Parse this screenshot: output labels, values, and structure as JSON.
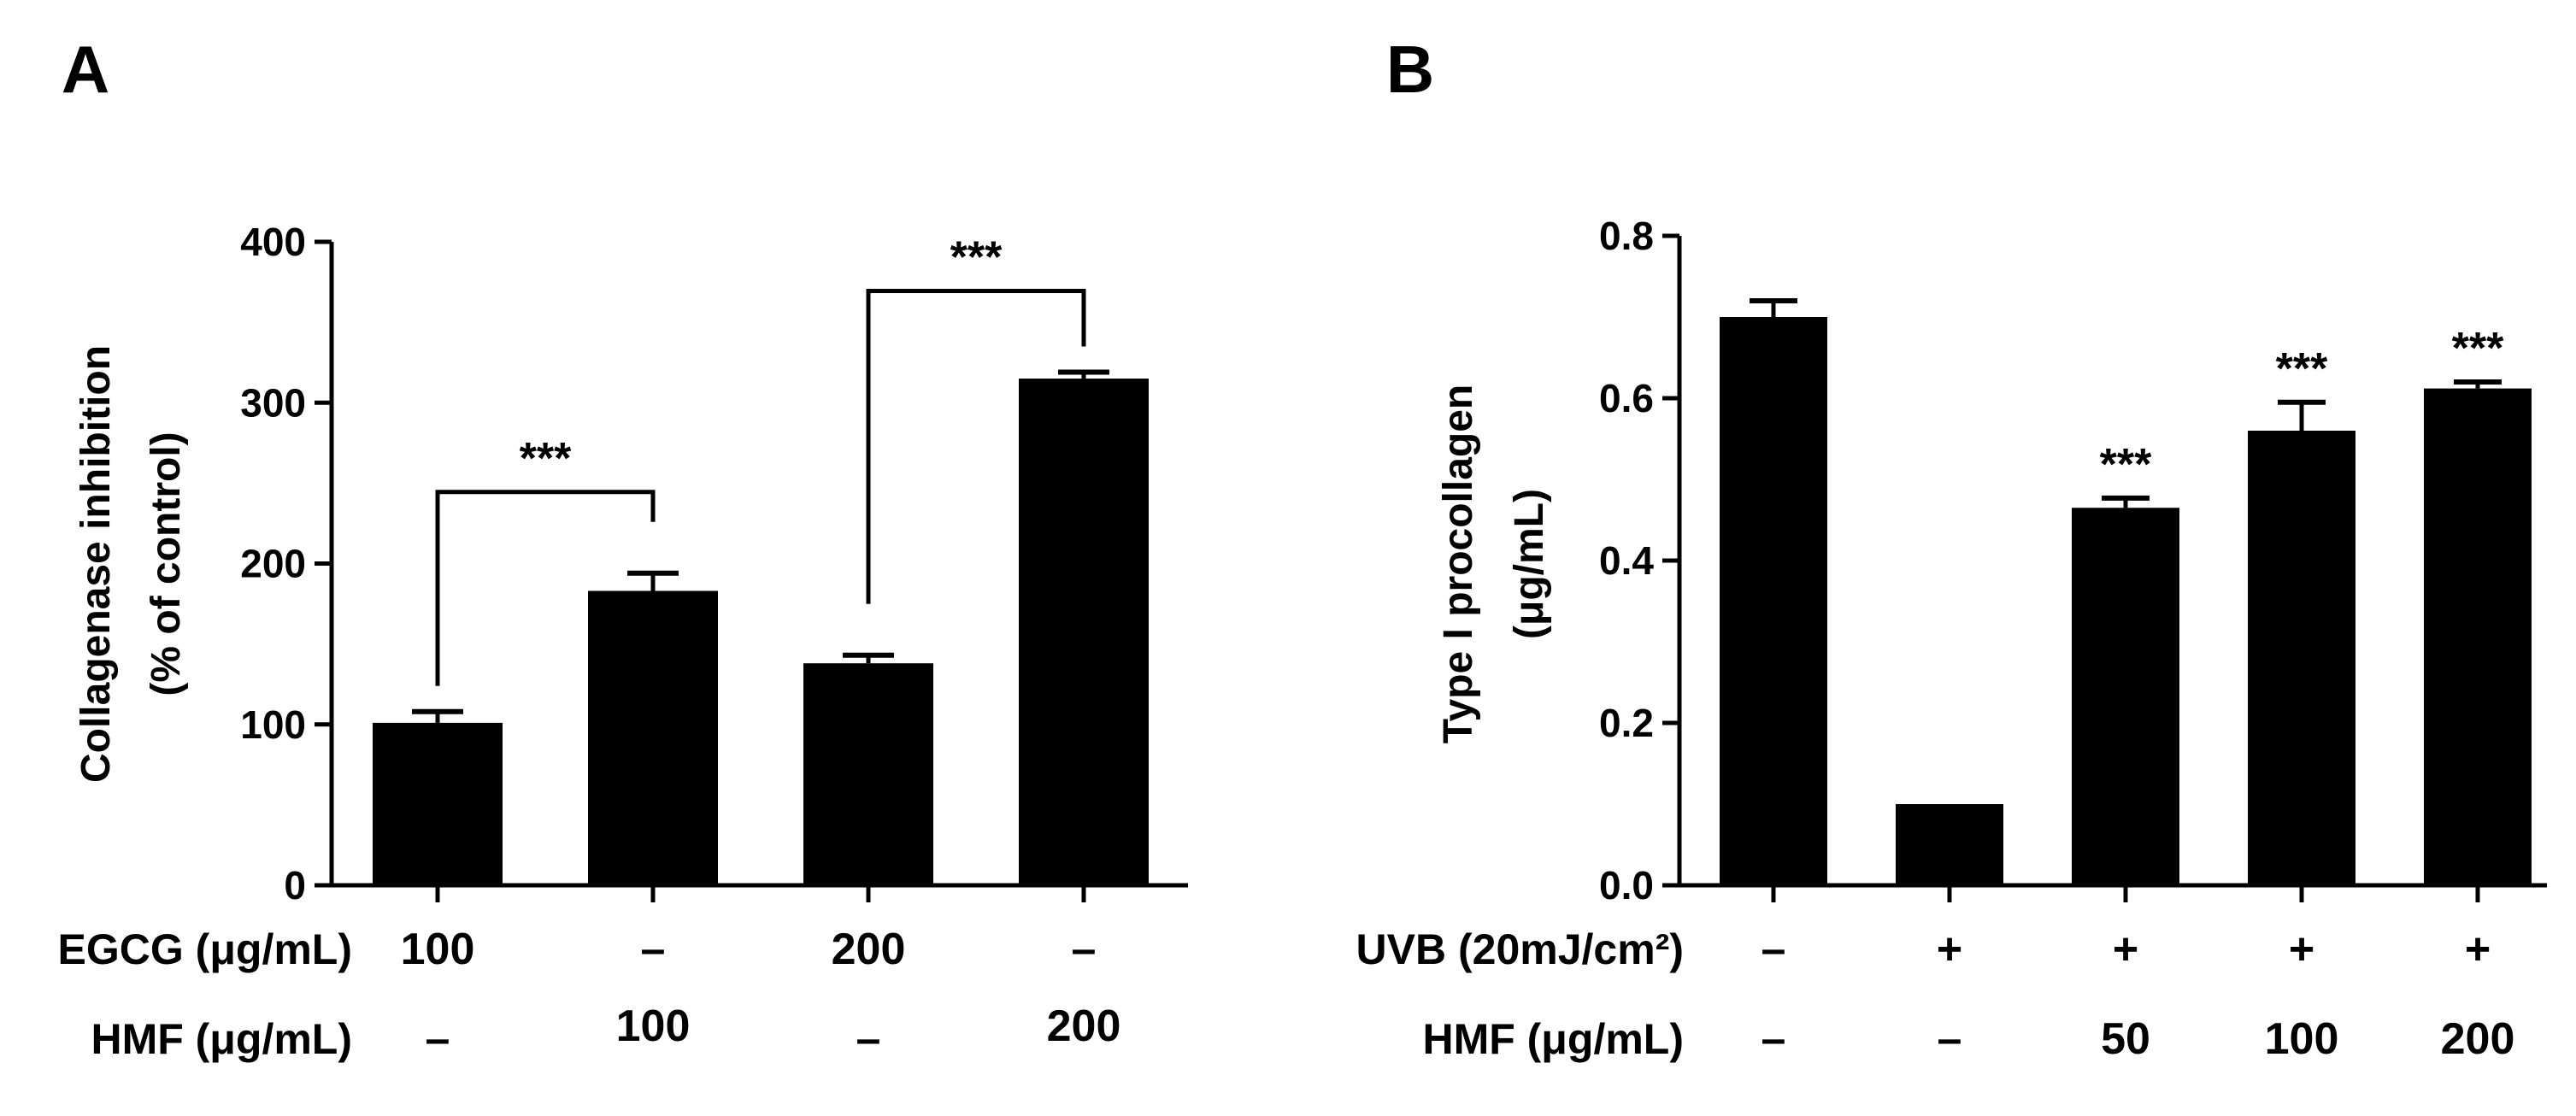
{
  "chart_data": [
    {
      "panel": "A",
      "type": "bar",
      "ylabel": [
        "Collagenase inhibition",
        "(% of control)"
      ],
      "ylim": [
        0,
        400
      ],
      "yticks": [
        0,
        100,
        200,
        300,
        400
      ],
      "ytick_labels": [
        "0",
        "100",
        "200",
        "300",
        "400"
      ],
      "values": [
        101,
        183,
        138,
        315
      ],
      "errors": [
        7,
        11,
        5,
        4
      ],
      "rows": [
        {
          "label": "EGCG (μg/mL)",
          "cells": [
            "100",
            "–",
            "200",
            "–"
          ]
        },
        {
          "label": "HMF (μg/mL)",
          "cells": [
            "–",
            "100",
            "–",
            "200"
          ]
        }
      ],
      "brackets": [
        {
          "from": 0,
          "to": 1,
          "label": "***"
        },
        {
          "from": 2,
          "to": 3,
          "label": "***"
        }
      ]
    },
    {
      "panel": "B",
      "type": "bar",
      "ylabel": [
        "Type I procollagen",
        "(μg/mL)"
      ],
      "ylim": [
        0,
        0.8
      ],
      "yticks": [
        0,
        0.2,
        0.4,
        0.6,
        0.8
      ],
      "ytick_labels": [
        "0.0",
        "0.2",
        "0.4",
        "0.6",
        "0.8"
      ],
      "values": [
        0.7,
        0.1,
        0.465,
        0.56,
        0.612
      ],
      "errors": [
        0.02,
        0,
        0.012,
        0.035,
        0.008
      ],
      "rows": [
        {
          "label": "UVB (20mJ/cm²)",
          "cells": [
            "–",
            "+",
            "+",
            "+",
            "+"
          ]
        },
        {
          "label": "HMF (μg/mL)",
          "cells": [
            "–",
            "–",
            "50",
            "100",
            "200"
          ]
        }
      ],
      "significance": [
        "",
        "",
        "***",
        "***",
        "***"
      ]
    }
  ]
}
